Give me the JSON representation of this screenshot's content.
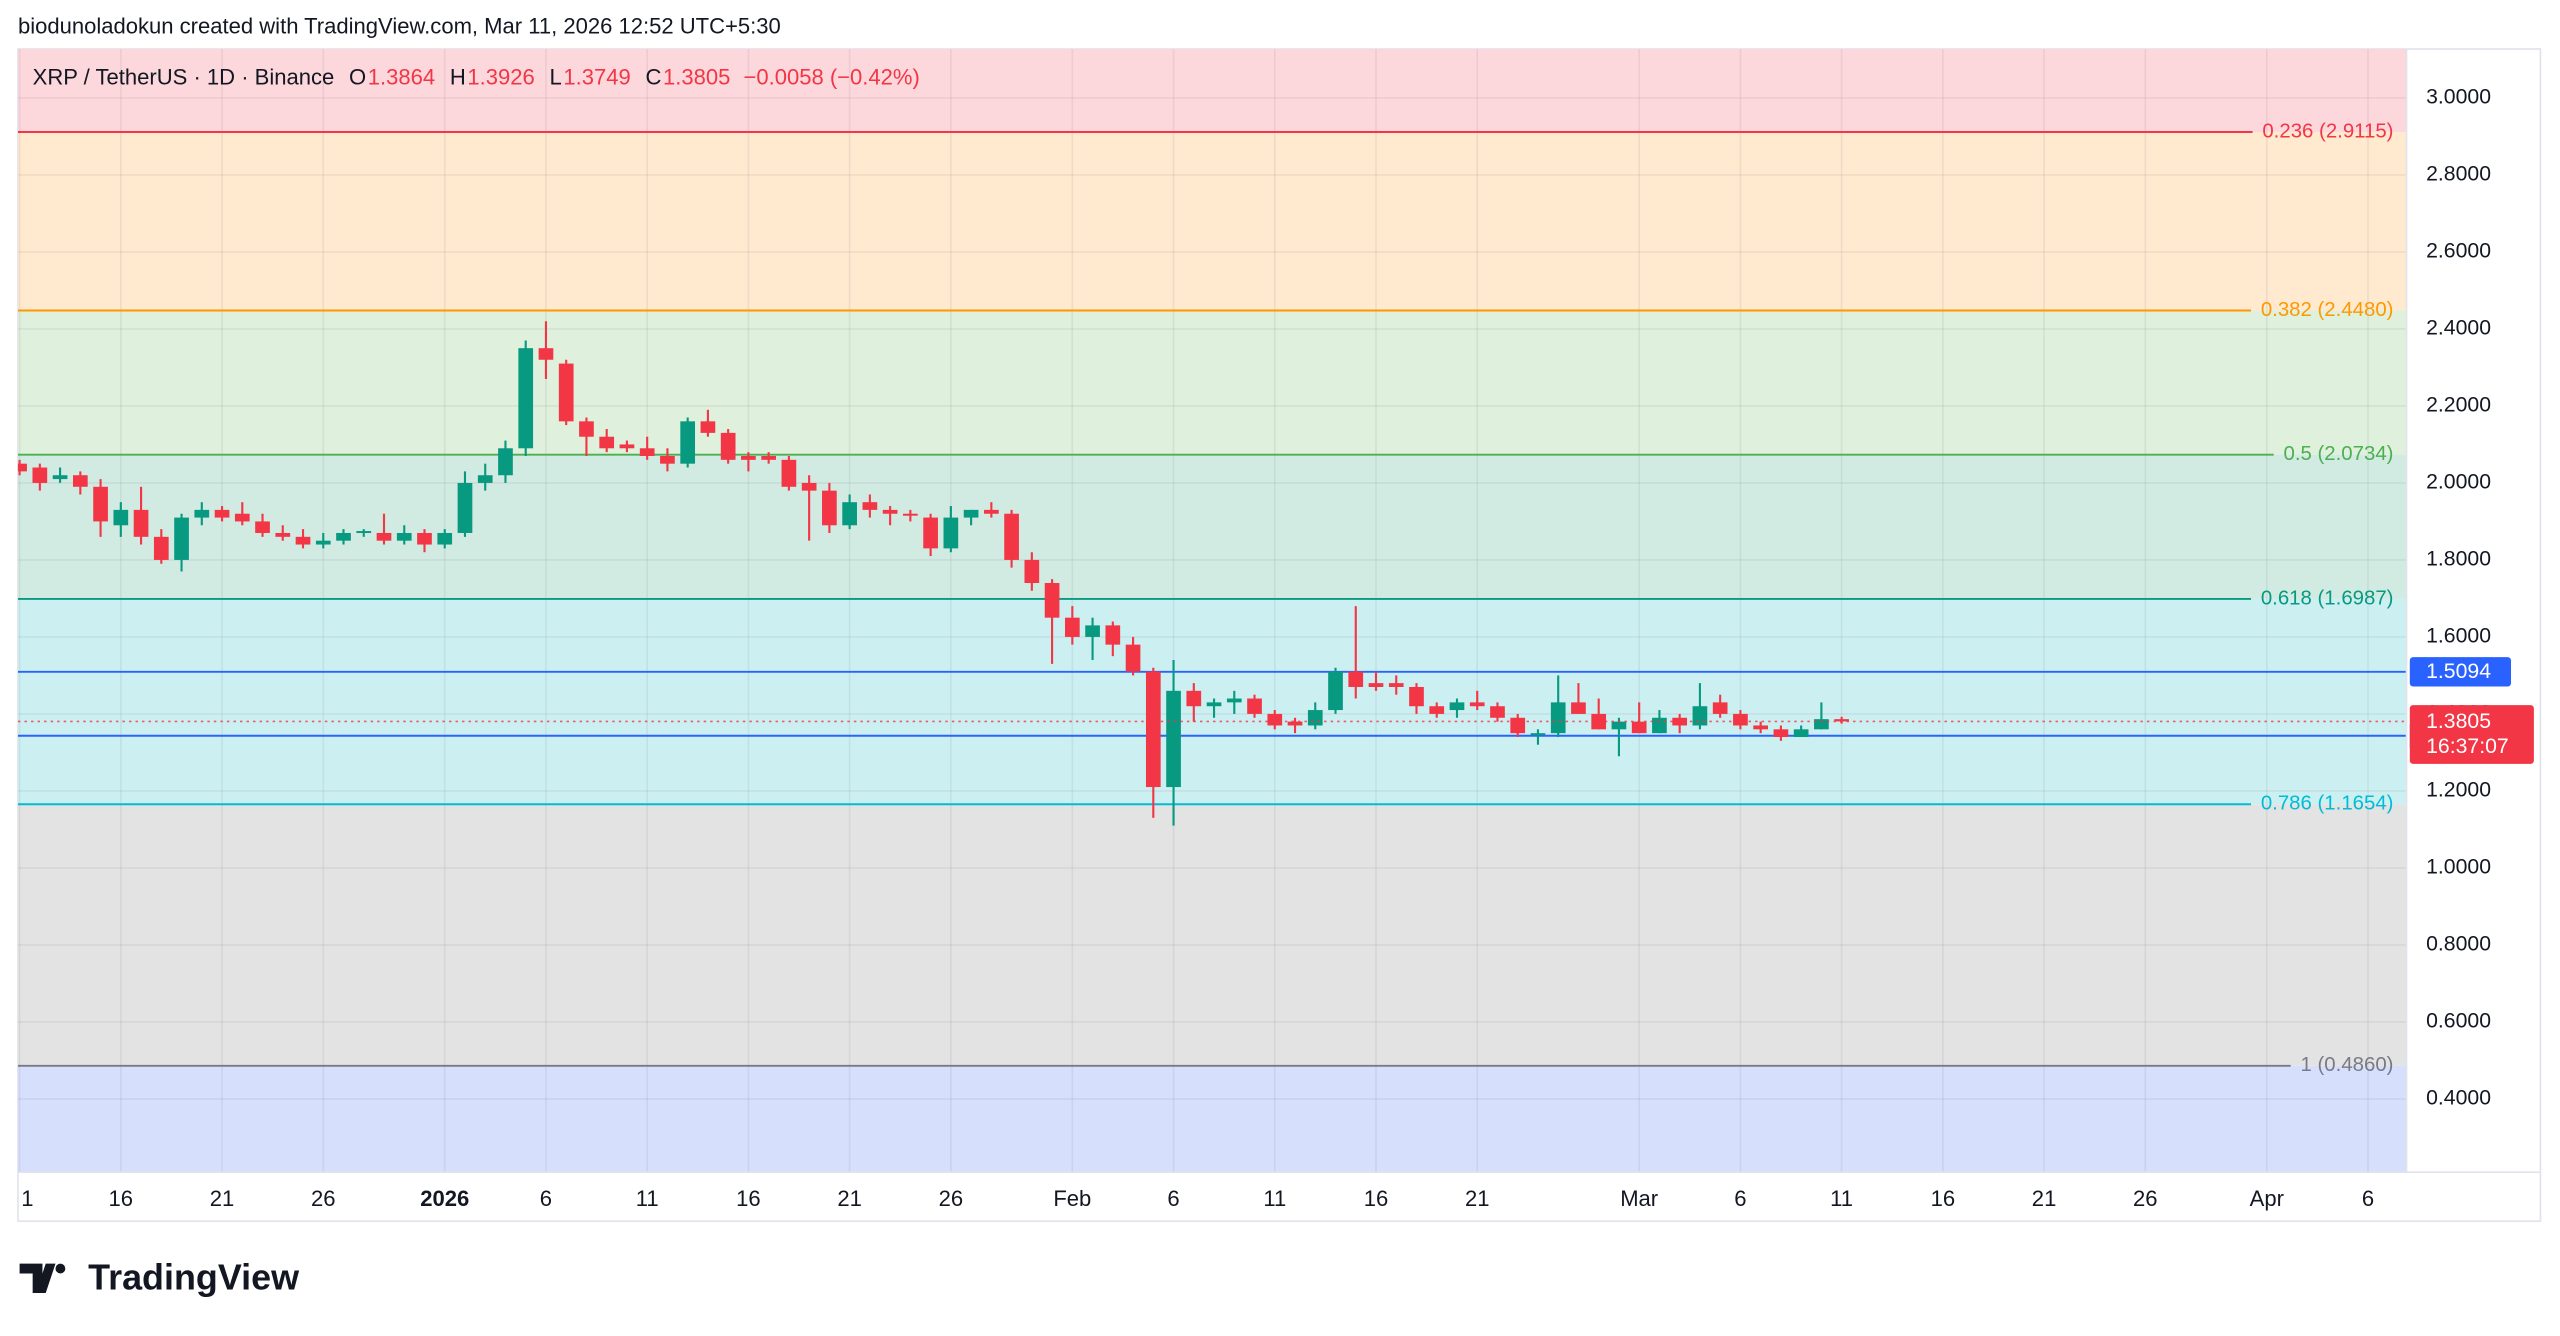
{
  "chart_data": {
    "type": "candlestick",
    "attribution": "biodunoladokun created with TradingView.com, Mar 11, 2026 12:52 UTC+5:30",
    "title": "XRP / TetherUS · 1D · Binance",
    "ohlc_labels": [
      "O",
      "H",
      "L",
      "C"
    ],
    "change_label": "−0.0058 (−0.42%)",
    "brand": "TradingView",
    "up_color": "#089981",
    "down_color": "#f23645",
    "grid": true,
    "ylim": [
      0.2095,
      3.1272
    ],
    "yticks": [
      {
        "value": 0.4,
        "label": "0.4000"
      },
      {
        "value": 0.6,
        "label": "0.6000"
      },
      {
        "value": 0.8,
        "label": "0.8000"
      },
      {
        "value": 1.0,
        "label": "1.0000"
      },
      {
        "value": 1.2,
        "label": "1.2000"
      },
      {
        "value": 1.4,
        "label": "1.4000"
      },
      {
        "value": 1.6,
        "label": "1.6000"
      },
      {
        "value": 1.8,
        "label": "1.8000"
      },
      {
        "value": 2.0,
        "label": "2.0000"
      },
      {
        "value": 2.2,
        "label": "2.2000"
      },
      {
        "value": 2.4,
        "label": "2.4000"
      },
      {
        "value": 2.6,
        "label": "2.6000"
      },
      {
        "value": 2.8,
        "label": "2.8000"
      },
      {
        "value": 3.0,
        "label": "3.0000"
      }
    ],
    "categories": [
      "1",
      null,
      null,
      null,
      null,
      "16",
      null,
      null,
      null,
      null,
      "21",
      null,
      null,
      null,
      null,
      "26",
      null,
      null,
      null,
      null,
      null,
      "2026",
      null,
      null,
      null,
      null,
      "6",
      null,
      null,
      null,
      null,
      "11",
      null,
      null,
      null,
      null,
      "16",
      null,
      null,
      null,
      null,
      "21",
      null,
      null,
      null,
      null,
      "26",
      null,
      null,
      null,
      null,
      null,
      "Feb",
      null,
      null,
      null,
      null,
      "6",
      null,
      null,
      null,
      null,
      "11",
      null,
      null,
      null,
      null,
      "16",
      null,
      null,
      null,
      null,
      "21",
      null,
      null,
      null,
      null,
      null,
      null,
      null,
      "Mar",
      null,
      null,
      null,
      null,
      "6",
      null,
      null,
      null,
      null,
      "11",
      null,
      null,
      null,
      null,
      "16",
      null,
      null,
      null,
      null,
      "21",
      null,
      null,
      null,
      null,
      "26",
      null,
      null,
      null,
      null,
      null,
      "Apr",
      null,
      null,
      null,
      null,
      "6",
      null,
      null
    ],
    "open": [
      2.05,
      2.04,
      2.01,
      2.02,
      1.99,
      1.89,
      1.93,
      1.86,
      1.8,
      1.91,
      1.93,
      1.92,
      1.9,
      1.87,
      1.86,
      1.84,
      1.85,
      1.87,
      1.87,
      1.85,
      1.87,
      1.84,
      1.87,
      2.0,
      2.02,
      2.09,
      2.35,
      2.31,
      2.16,
      2.12,
      2.1,
      2.09,
      2.07,
      2.05,
      2.16,
      2.13,
      2.07,
      2.07,
      2.06,
      2.0,
      1.98,
      1.89,
      1.95,
      1.93,
      1.92,
      1.91,
      1.83,
      1.91,
      1.93,
      1.92,
      1.8,
      1.74,
      1.65,
      1.6,
      1.63,
      1.58,
      1.51,
      1.21,
      1.46,
      1.42,
      1.43,
      1.44,
      1.4,
      1.38,
      1.37,
      1.41,
      1.51,
      1.48,
      1.48,
      1.47,
      1.42,
      1.41,
      1.43,
      1.42,
      1.39,
      1.35,
      1.35,
      1.43,
      1.4,
      1.36,
      1.38,
      1.35,
      1.39,
      1.37,
      1.43,
      1.4,
      1.37,
      1.36,
      1.34,
      1.36,
      1.3864,
      null,
      null,
      null,
      null,
      null,
      null,
      null,
      null,
      null,
      null,
      null,
      null,
      null,
      null,
      null,
      null,
      null,
      null,
      null,
      null,
      null,
      null,
      null,
      null,
      null,
      null,
      null,
      null
    ],
    "high": [
      2.06,
      2.05,
      2.04,
      2.03,
      2.01,
      1.95,
      1.99,
      1.88,
      1.92,
      1.95,
      1.94,
      1.95,
      1.92,
      1.89,
      1.88,
      1.87,
      1.88,
      1.88,
      1.92,
      1.89,
      1.88,
      1.88,
      2.03,
      2.05,
      2.11,
      2.37,
      2.42,
      2.32,
      2.17,
      2.14,
      2.11,
      2.12,
      2.09,
      2.17,
      2.19,
      2.14,
      2.08,
      2.08,
      2.07,
      2.02,
      2.0,
      1.97,
      1.97,
      1.94,
      1.93,
      1.92,
      1.94,
      1.93,
      1.95,
      1.93,
      1.82,
      1.75,
      1.68,
      1.65,
      1.64,
      1.6,
      1.52,
      1.54,
      1.48,
      1.44,
      1.46,
      1.45,
      1.41,
      1.39,
      1.43,
      1.52,
      1.68,
      1.51,
      1.5,
      1.48,
      1.43,
      1.44,
      1.46,
      1.43,
      1.4,
      1.36,
      1.5,
      1.48,
      1.44,
      1.39,
      1.43,
      1.41,
      1.4,
      1.48,
      1.45,
      1.41,
      1.38,
      1.37,
      1.37,
      1.43,
      1.3926,
      null,
      null,
      null,
      null,
      null,
      null,
      null,
      null,
      null,
      null,
      null,
      null,
      null,
      null,
      null,
      null,
      null,
      null,
      null,
      null,
      null,
      null,
      null,
      null,
      null,
      null,
      null,
      null
    ],
    "low": [
      2.02,
      1.98,
      2.0,
      1.97,
      1.86,
      1.86,
      1.84,
      1.79,
      1.77,
      1.89,
      1.9,
      1.89,
      1.86,
      1.85,
      1.83,
      1.83,
      1.84,
      1.86,
      1.84,
      1.84,
      1.82,
      1.83,
      1.86,
      1.98,
      2.0,
      2.07,
      2.27,
      2.15,
      2.07,
      2.08,
      2.08,
      2.06,
      2.03,
      2.04,
      2.12,
      2.05,
      2.03,
      2.05,
      1.98,
      1.85,
      1.87,
      1.88,
      1.91,
      1.89,
      1.9,
      1.81,
      1.82,
      1.89,
      1.91,
      1.78,
      1.72,
      1.53,
      1.58,
      1.54,
      1.55,
      1.5,
      1.13,
      1.11,
      1.38,
      1.39,
      1.4,
      1.39,
      1.36,
      1.35,
      1.36,
      1.4,
      1.44,
      1.46,
      1.45,
      1.4,
      1.39,
      1.39,
      1.41,
      1.38,
      1.34,
      1.32,
      1.34,
      1.4,
      1.36,
      1.29,
      1.35,
      1.35,
      1.35,
      1.36,
      1.39,
      1.36,
      1.35,
      1.33,
      1.34,
      1.36,
      1.3749,
      null,
      null,
      null,
      null,
      null,
      null,
      null,
      null,
      null,
      null,
      null,
      null,
      null,
      null,
      null,
      null,
      null,
      null,
      null,
      null,
      null,
      null,
      null,
      null,
      null,
      null,
      null,
      null
    ],
    "close": [
      2.03,
      2.0,
      2.02,
      1.99,
      1.9,
      1.93,
      1.86,
      1.8,
      1.91,
      1.93,
      1.91,
      1.9,
      1.87,
      1.86,
      1.84,
      1.85,
      1.87,
      1.875,
      1.85,
      1.87,
      1.84,
      1.87,
      2.0,
      2.02,
      2.09,
      2.35,
      2.32,
      2.16,
      2.12,
      2.09,
      2.09,
      2.07,
      2.05,
      2.16,
      2.13,
      2.06,
      2.06,
      2.06,
      1.99,
      1.98,
      1.89,
      1.95,
      1.93,
      1.92,
      1.915,
      1.83,
      1.91,
      1.93,
      1.92,
      1.8,
      1.74,
      1.65,
      1.6,
      1.63,
      1.58,
      1.51,
      1.21,
      1.46,
      1.42,
      1.43,
      1.44,
      1.4,
      1.37,
      1.37,
      1.41,
      1.51,
      1.47,
      1.47,
      1.47,
      1.42,
      1.4,
      1.43,
      1.42,
      1.39,
      1.35,
      1.35,
      1.43,
      1.4,
      1.36,
      1.38,
      1.35,
      1.39,
      1.37,
      1.42,
      1.4,
      1.37,
      1.36,
      1.34,
      1.36,
      1.3864,
      1.3805,
      null,
      null,
      null,
      null,
      null,
      null,
      null,
      null,
      null,
      null,
      null,
      null,
      null,
      null,
      null,
      null,
      null,
      null,
      null,
      null,
      null,
      null,
      null,
      null,
      null,
      null,
      null,
      null
    ],
    "fib_top_zone_color": "#fcd7dc",
    "fib_levels": [
      {
        "label": "0.236 (2.9115)",
        "value": 2.9115,
        "color": "#f23645",
        "zone_color": "#ffe9cf"
      },
      {
        "label": "0.382 (2.4480)",
        "value": 2.448,
        "color": "#ff9800",
        "zone_color": "#dff0dc"
      },
      {
        "label": "0.5 (2.0734)",
        "value": 2.0734,
        "color": "#4caf50",
        "zone_color": "#d1ebe2"
      },
      {
        "label": "0.618 (1.6987)",
        "value": 1.6987,
        "color": "#089981",
        "zone_color": "#ccf0f2"
      },
      {
        "label": "0.786 (1.1654)",
        "value": 1.1654,
        "color": "#00bcd4",
        "zone_color": "#e3e3e3"
      },
      {
        "label": "1 (0.4860)",
        "value": 0.486,
        "color": "#787b86",
        "zone_color": "#d6dffc"
      }
    ],
    "price_lines": [
      {
        "value": 1.5094,
        "color": "#2962ff"
      },
      {
        "value": 1.3434,
        "color": "#2962ff"
      }
    ],
    "countdown": "16:37:07"
  }
}
